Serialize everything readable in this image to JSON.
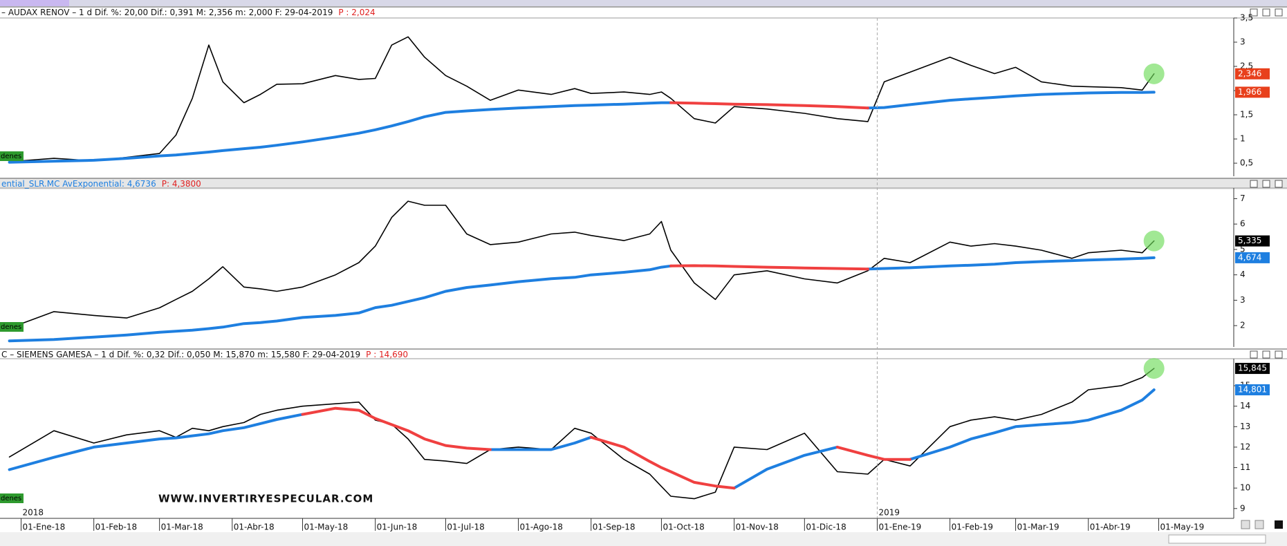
{
  "chart_data": [
    {
      "type": "line",
      "header": "– AUDAX RENOV –  1 d Dif. %: 20,00 Dif.: 0,391 M: 2,356 m: 2,000 F: 29-04-2019",
      "header_color": "#111111",
      "header_price": "P : 2,024",
      "order_tag": "denes",
      "x": [
        "2017-12-27",
        "2018-01-15",
        "2018-02-01",
        "2018-02-15",
        "2018-03-01",
        "2018-03-08",
        "2018-03-15",
        "2018-03-22",
        "2018-03-28",
        "2018-04-06",
        "2018-04-13",
        "2018-04-20",
        "2018-05-01",
        "2018-05-15",
        "2018-05-25",
        "2018-06-01",
        "2018-06-08",
        "2018-06-15",
        "2018-06-22",
        "2018-07-01",
        "2018-07-10",
        "2018-07-20",
        "2018-08-01",
        "2018-08-15",
        "2018-08-25",
        "2018-09-01",
        "2018-09-15",
        "2018-09-26",
        "2018-10-01",
        "2018-10-05",
        "2018-10-15",
        "2018-10-24",
        "2018-11-01",
        "2018-11-15",
        "2018-12-01",
        "2018-12-15",
        "2018-12-28",
        "2019-01-04",
        "2019-01-15",
        "2019-02-01",
        "2019-02-10",
        "2019-02-20",
        "2019-03-01",
        "2019-03-12",
        "2019-03-25",
        "2019-04-01",
        "2019-04-15",
        "2019-04-24",
        "2019-04-29"
      ],
      "xlim": [
        "2017-12-23",
        "2019-06-02"
      ],
      "ylim": [
        0.23,
        3.5
      ],
      "yticks": [
        {
          "value": 0.5,
          "label": "0,5"
        },
        1,
        {
          "value": 1.5,
          "label": "1,5"
        },
        2,
        {
          "value": 2.5,
          "label": "2,5"
        },
        3,
        {
          "value": 3.5,
          "label": "3,5"
        }
      ],
      "series": [
        {
          "color": "#000000",
          "values": [
            0.53,
            0.6,
            0.55,
            0.62,
            0.7,
            1.08,
            1.84,
            2.94,
            2.18,
            1.75,
            1.92,
            2.13,
            2.14,
            2.31,
            2.23,
            2.25,
            2.94,
            3.11,
            2.69,
            2.31,
            2.09,
            1.8,
            2.01,
            1.92,
            2.04,
            1.94,
            1.97,
            1.92,
            1.97,
            1.84,
            1.42,
            1.33,
            1.67,
            1.62,
            1.53,
            1.42,
            1.36,
            2.18,
            2.38,
            2.69,
            2.52,
            2.35,
            2.48,
            2.18,
            2.09,
            2.08,
            2.06,
            2.01,
            2.346
          ],
          "last_value_label": "2,346",
          "label_color": "#e8401c"
        },
        {
          "color": "#1e7fe0",
          "values": [
            0.52,
            0.54,
            0.56,
            0.6,
            0.65,
            0.67,
            0.7,
            0.73,
            0.76,
            0.8,
            0.83,
            0.87,
            0.94,
            1.04,
            1.12,
            1.19,
            1.27,
            1.36,
            1.46,
            1.55,
            1.58,
            1.61,
            1.64,
            1.67,
            1.69,
            1.7,
            1.72,
            1.74,
            1.75,
            1.75,
            null,
            null,
            null,
            null,
            null,
            null,
            1.64,
            1.65,
            1.71,
            1.8,
            1.83,
            1.86,
            1.89,
            1.92,
            1.94,
            1.95,
            1.96,
            1.96,
            1.966
          ],
          "last_value_label": "1,966",
          "label_color": "#e8401c"
        },
        {
          "color": "#f04040",
          "values": [
            null,
            null,
            null,
            null,
            null,
            null,
            null,
            null,
            null,
            null,
            null,
            null,
            null,
            null,
            null,
            null,
            null,
            null,
            null,
            null,
            null,
            null,
            null,
            null,
            null,
            null,
            null,
            null,
            null,
            1.75,
            1.74,
            1.73,
            1.72,
            1.71,
            1.69,
            1.67,
            1.64,
            null,
            null,
            null,
            null,
            null,
            null,
            null,
            null,
            null,
            null,
            null,
            null
          ]
        }
      ]
    },
    {
      "type": "line",
      "header": "ential_SLR.MC AvExponential: 4,6736",
      "header_color": "#1e7fe0",
      "header_price": "P: 4,3800",
      "order_tag": "denes",
      "x": [
        "2017-12-27",
        "2018-01-15",
        "2018-02-01",
        "2018-02-15",
        "2018-03-01",
        "2018-03-08",
        "2018-03-15",
        "2018-03-22",
        "2018-03-28",
        "2018-04-06",
        "2018-04-13",
        "2018-04-20",
        "2018-05-01",
        "2018-05-15",
        "2018-05-25",
        "2018-06-01",
        "2018-06-08",
        "2018-06-15",
        "2018-06-22",
        "2018-07-01",
        "2018-07-10",
        "2018-07-20",
        "2018-08-01",
        "2018-08-15",
        "2018-08-25",
        "2018-09-01",
        "2018-09-15",
        "2018-09-26",
        "2018-10-01",
        "2018-10-05",
        "2018-10-15",
        "2018-10-24",
        "2018-11-01",
        "2018-11-15",
        "2018-12-01",
        "2018-12-15",
        "2018-12-28",
        "2019-01-04",
        "2019-01-15",
        "2019-02-01",
        "2019-02-10",
        "2019-02-20",
        "2019-03-01",
        "2019-03-12",
        "2019-03-25",
        "2019-04-01",
        "2019-04-15",
        "2019-04-24",
        "2019-04-29"
      ],
      "xlim": [
        "2017-12-23",
        "2019-06-02"
      ],
      "ylim": [
        1.16,
        7.42
      ],
      "yticks": [
        2,
        3,
        4,
        5,
        6,
        7
      ],
      "series": [
        {
          "color": "#000000",
          "values": [
            1.9,
            2.55,
            2.4,
            2.3,
            2.7,
            3.03,
            3.35,
            3.84,
            4.32,
            3.52,
            3.45,
            3.35,
            3.52,
            4.0,
            4.48,
            5.13,
            6.26,
            6.9,
            6.74,
            6.74,
            5.61,
            5.19,
            5.29,
            5.61,
            5.68,
            5.55,
            5.35,
            5.61,
            6.1,
            4.97,
            3.68,
            3.03,
            4.0,
            4.16,
            3.84,
            3.68,
            4.16,
            4.65,
            4.48,
            5.29,
            5.13,
            5.23,
            5.13,
            4.97,
            4.65,
            4.87,
            4.97,
            4.87,
            5.335
          ],
          "last_value_label": "5,335",
          "label_color": "#000000"
        },
        {
          "color": "#1e7fe0",
          "values": [
            1.4,
            1.45,
            1.55,
            1.63,
            1.74,
            1.78,
            1.82,
            1.88,
            1.94,
            2.08,
            2.12,
            2.18,
            2.32,
            2.4,
            2.5,
            2.71,
            2.8,
            2.95,
            3.1,
            3.35,
            3.5,
            3.6,
            3.73,
            3.85,
            3.9,
            4.0,
            4.1,
            4.2,
            4.3,
            4.35,
            null,
            null,
            null,
            null,
            null,
            null,
            4.23,
            4.25,
            4.28,
            4.35,
            4.38,
            4.42,
            4.48,
            4.52,
            4.56,
            4.58,
            4.62,
            4.65,
            4.674
          ],
          "last_value_label": "4,674",
          "label_color": "#1e7fe0"
        },
        {
          "color": "#f04040",
          "values": [
            null,
            null,
            null,
            null,
            null,
            null,
            null,
            null,
            null,
            null,
            null,
            null,
            null,
            null,
            null,
            null,
            null,
            null,
            null,
            null,
            null,
            null,
            null,
            null,
            null,
            null,
            null,
            null,
            null,
            4.35,
            4.36,
            4.35,
            4.33,
            4.3,
            4.27,
            4.25,
            4.23,
            null,
            null,
            null,
            null,
            null,
            null,
            null,
            null,
            null,
            null,
            null,
            null
          ]
        }
      ]
    },
    {
      "type": "line",
      "header": "C – SIEMENS GAMESA –  1 d Dif. %: 0,32 Dif.: 0,050 M: 15,870 m: 15,580 F: 29-04-2019",
      "header_color": "#111111",
      "header_price": "P : 14,690",
      "order_tag": "denes",
      "annotation": "WWW.INVERTIRYESPECULAR.COM",
      "x": [
        "2017-12-27",
        "2018-01-15",
        "2018-02-01",
        "2018-02-15",
        "2018-03-01",
        "2018-03-08",
        "2018-03-15",
        "2018-03-22",
        "2018-03-28",
        "2018-04-06",
        "2018-04-13",
        "2018-04-20",
        "2018-05-01",
        "2018-05-15",
        "2018-05-25",
        "2018-06-01",
        "2018-06-08",
        "2018-06-15",
        "2018-06-22",
        "2018-07-01",
        "2018-07-10",
        "2018-07-20",
        "2018-08-01",
        "2018-08-15",
        "2018-08-25",
        "2018-09-01",
        "2018-09-15",
        "2018-09-26",
        "2018-10-01",
        "2018-10-05",
        "2018-10-15",
        "2018-10-24",
        "2018-11-01",
        "2018-11-15",
        "2018-12-01",
        "2018-12-15",
        "2018-12-28",
        "2019-01-04",
        "2019-01-15",
        "2019-02-01",
        "2019-02-10",
        "2019-02-20",
        "2019-03-01",
        "2019-03-12",
        "2019-03-25",
        "2019-04-01",
        "2019-04-15",
        "2019-04-24",
        "2019-04-29"
      ],
      "xlim": [
        "2017-12-23",
        "2019-06-02"
      ],
      "xticks": [
        {
          "value": "2018-01-01",
          "label": "01-Ene-18"
        },
        {
          "value": "2018-02-01",
          "label": "01-Feb-18"
        },
        {
          "value": "2018-03-01",
          "label": "01-Mar-18"
        },
        {
          "value": "2018-04-01",
          "label": "01-Abr-18"
        },
        {
          "value": "2018-05-01",
          "label": "01-May-18"
        },
        {
          "value": "2018-06-01",
          "label": "01-Jun-18"
        },
        {
          "value": "2018-07-01",
          "label": "01-Jul-18"
        },
        {
          "value": "2018-08-01",
          "label": "01-Ago-18"
        },
        {
          "value": "2018-09-01",
          "label": "01-Sep-18"
        },
        {
          "value": "2018-10-01",
          "label": "01-Oct-18"
        },
        {
          "value": "2018-11-01",
          "label": "01-Nov-18"
        },
        {
          "value": "2018-12-01",
          "label": "01-Dic-18"
        },
        {
          "value": "2019-01-01",
          "label": "01-Ene-19"
        },
        {
          "value": "2019-02-01",
          "label": "01-Feb-19"
        },
        {
          "value": "2019-03-01",
          "label": "01-Mar-19"
        },
        {
          "value": "2019-04-01",
          "label": "01-Abr-19"
        },
        {
          "value": "2019-05-01",
          "label": "01-May-19"
        }
      ],
      "year_labels": [
        {
          "value": "2018-01-01",
          "label": "2018"
        },
        {
          "value": "2019-01-01",
          "label": "2019"
        }
      ],
      "ylim": [
        8.52,
        16.32
      ],
      "yticks": [
        9,
        10,
        11,
        12,
        13,
        14,
        15
      ],
      "series": [
        {
          "color": "#000000",
          "values": [
            11.52,
            12.8,
            12.2,
            12.6,
            12.8,
            12.48,
            12.92,
            12.8,
            13.0,
            13.2,
            13.6,
            13.8,
            14.0,
            14.12,
            14.2,
            13.32,
            13.12,
            12.4,
            11.4,
            11.32,
            11.2,
            11.88,
            12.0,
            11.88,
            12.92,
            12.68,
            11.4,
            10.68,
            10.08,
            9.6,
            9.48,
            9.8,
            12.0,
            11.88,
            12.68,
            10.8,
            10.68,
            11.4,
            11.08,
            13.0,
            13.32,
            13.48,
            13.32,
            13.6,
            14.2,
            14.8,
            15.0,
            15.4,
            15.845
          ],
          "last_value_label": "15,845",
          "label_color": "#000000"
        },
        {
          "color": "#1e7fe0",
          "values": [
            10.9,
            11.5,
            12.0,
            12.2,
            12.4,
            12.45,
            12.55,
            12.65,
            12.8,
            12.95,
            13.15,
            13.35,
            13.6,
            null,
            null,
            null,
            null,
            null,
            null,
            null,
            null,
            11.88,
            11.88,
            11.88,
            12.2,
            12.48,
            null,
            null,
            null,
            null,
            null,
            null,
            10.0,
            10.92,
            11.6,
            12.0,
            null,
            null,
            11.4,
            12.0,
            12.4,
            12.7,
            13.0,
            13.1,
            13.2,
            13.32,
            13.8,
            14.3,
            14.801
          ],
          "last_value_label": "14,801",
          "label_color": "#1e7fe0"
        },
        {
          "color": "#f04040",
          "values": [
            null,
            null,
            null,
            null,
            null,
            null,
            null,
            null,
            null,
            null,
            null,
            null,
            13.6,
            13.9,
            13.8,
            13.4,
            13.1,
            12.8,
            12.4,
            12.08,
            11.95,
            11.88,
            null,
            null,
            null,
            12.48,
            12.0,
            11.3,
            11.0,
            10.8,
            10.28,
            10.1,
            10.0,
            null,
            null,
            12.0,
            11.6,
            11.4,
            11.4,
            null,
            null,
            null,
            null,
            null,
            null,
            null,
            null,
            null,
            null
          ]
        }
      ]
    }
  ]
}
